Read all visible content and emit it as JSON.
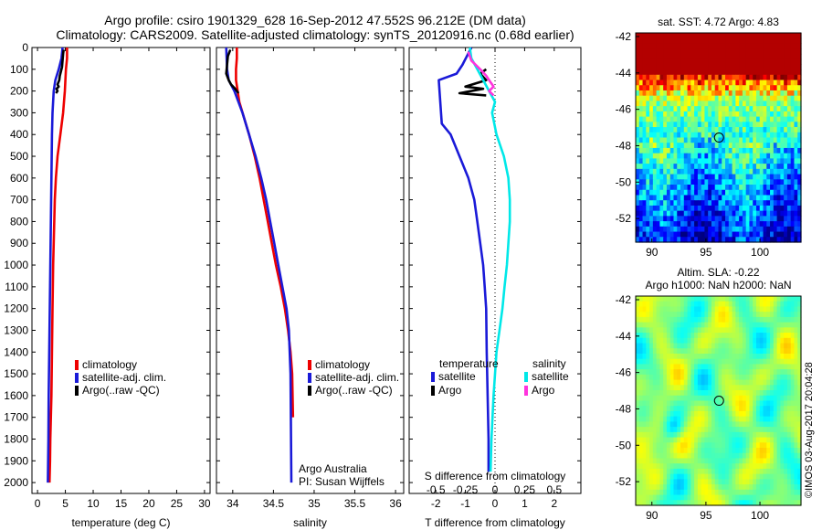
{
  "header": {
    "title_line1": "Argo profile: csiro 1901329_628 16-Sep-2012 47.552S 96.212E (DM data)",
    "title_line2": "Climatology: CARS2009. Satellite-adjusted climatology: synTS_20120916.nc (0.68d earlier)"
  },
  "colors": {
    "climatology": "#ee0000",
    "satellite": "#1a1ad8",
    "argo": "#000000",
    "salinity_satellite": "#00e8e8",
    "salinity_argo": "#ff33dd"
  },
  "chart_data": [
    {
      "type": "line",
      "panel": "temperature",
      "xlabel": "temperature (deg C)",
      "ylabel": "",
      "xlim": [
        -1,
        31
      ],
      "ylim": [
        2050,
        0
      ],
      "y_reversed": true,
      "xticks": [
        0,
        5,
        10,
        15,
        20,
        25,
        30
      ],
      "yticks": [
        0,
        100,
        200,
        300,
        400,
        500,
        600,
        700,
        800,
        900,
        1000,
        1100,
        1200,
        1300,
        1400,
        1500,
        1600,
        1700,
        1800,
        1900,
        2000
      ],
      "legend": [
        "climatology",
        "satellite-adj. clim.",
        "Argo(..raw -QC)"
      ],
      "series": [
        {
          "name": "climatology",
          "color": "#ee0000",
          "x": [
            5.3,
            5.3,
            5.1,
            4.9,
            4.6,
            4.1,
            3.6,
            3.3,
            3.1,
            3.0,
            2.9,
            2.8,
            2.7,
            2.6,
            2.5,
            2.4,
            2.3,
            2.25,
            2.2,
            2.15
          ],
          "y": [
            0,
            50,
            100,
            200,
            300,
            400,
            500,
            600,
            700,
            800,
            900,
            1000,
            1200,
            1400,
            1600,
            1700,
            1800,
            1900,
            1950,
            2000
          ]
        },
        {
          "name": "satellite-adj. clim.",
          "color": "#1a1ad8",
          "x": [
            4.5,
            4.3,
            3.8,
            3.2,
            2.9,
            2.7,
            2.6,
            2.5,
            2.4,
            2.3,
            2.2,
            2.1,
            2.0,
            1.95,
            1.9,
            1.85
          ],
          "y": [
            0,
            50,
            100,
            150,
            200,
            300,
            400,
            600,
            800,
            1000,
            1200,
            1400,
            1600,
            1800,
            1900,
            2000
          ]
        },
        {
          "name": "Argo(..raw -QC)",
          "color": "#000000",
          "x": [
            4.7,
            4.6,
            4.5,
            4.4,
            4.2,
            4.0,
            3.9,
            3.6,
            3.8,
            3.4,
            3.6,
            3.3
          ],
          "y": [
            10,
            30,
            60,
            90,
            110,
            130,
            150,
            170,
            180,
            190,
            200,
            210
          ]
        }
      ]
    },
    {
      "type": "line",
      "panel": "salinity",
      "xlabel": "salinity",
      "ylabel": "",
      "xlim": [
        33.8,
        36.1
      ],
      "ylim": [
        2050,
        0
      ],
      "y_reversed": true,
      "xticks": [
        34,
        34.5,
        35,
        35.5,
        36
      ],
      "legend": [
        "climatology",
        "satellite-adj. clim.",
        "Argo(..raw -QC)"
      ],
      "annotations": [
        "Argo Australia",
        "PI: Susan Wijffels"
      ],
      "series": [
        {
          "name": "climatology",
          "color": "#ee0000",
          "x": [
            34.05,
            34.05,
            34.04,
            34.04,
            34.08,
            34.2,
            34.27,
            34.33,
            34.38,
            34.43,
            34.48,
            34.53,
            34.59,
            34.64,
            34.68,
            34.71,
            34.73,
            34.74
          ],
          "y": [
            0,
            50,
            100,
            150,
            250,
            400,
            500,
            600,
            700,
            800,
            900,
            1000,
            1100,
            1200,
            1300,
            1400,
            1500,
            1700
          ]
        },
        {
          "name": "satellite-adj. clim.",
          "color": "#1a1ad8",
          "x": [
            33.92,
            33.93,
            33.95,
            34.02,
            34.12,
            34.2,
            34.28,
            34.35,
            34.41,
            34.46,
            34.51,
            34.56,
            34.61,
            34.66,
            34.69,
            34.71,
            34.72
          ],
          "y": [
            0,
            100,
            150,
            200,
            300,
            400,
            500,
            600,
            700,
            800,
            900,
            1000,
            1100,
            1200,
            1300,
            1500,
            2000
          ]
        },
        {
          "name": "Argo(..raw -QC)",
          "color": "#000000",
          "x": [
            33.97,
            33.94,
            33.93,
            33.92,
            33.95,
            33.98,
            34.03,
            34.05,
            34.07
          ],
          "y": [
            10,
            40,
            80,
            120,
            150,
            170,
            190,
            200,
            210
          ]
        }
      ]
    },
    {
      "type": "line",
      "panel": "difference",
      "xlabel": "T difference from climatology",
      "xlabel_top": "S difference from climatology",
      "xlim": [
        -2.9,
        2.9
      ],
      "ylim": [
        2050,
        0
      ],
      "y_reversed": true,
      "xticks_T": [
        -2,
        -1,
        0,
        1,
        2
      ],
      "xticks_S": [
        "-0.5",
        "-0.25",
        "0",
        "0.25",
        "0.5"
      ],
      "legend_headers": [
        "temperature",
        "salinity"
      ],
      "legend": [
        "satellite",
        "Argo",
        "satellite",
        "Argo"
      ],
      "series": [
        {
          "name": "temperature satellite",
          "color": "#1a1ad8",
          "x": [
            -0.8,
            -1.1,
            -1.3,
            -1.9,
            -1.8,
            -1.5,
            -1.2,
            -0.9,
            -0.7,
            -0.6,
            -0.5,
            -0.4,
            -0.35,
            -0.3,
            -0.28,
            -0.25,
            -0.22,
            -0.22
          ],
          "y": [
            0,
            80,
            120,
            150,
            350,
            400,
            500,
            600,
            700,
            800,
            900,
            1000,
            1100,
            1200,
            1400,
            1600,
            1800,
            1950
          ]
        },
        {
          "name": "temperature Argo",
          "color": "#000000",
          "x": [
            -0.3,
            -0.5,
            -0.3,
            -1.0,
            -0.4,
            -1.2,
            -0.3
          ],
          "y": [
            100,
            120,
            150,
            180,
            190,
            210,
            220
          ]
        },
        {
          "name": "salinity satellite",
          "color": "#00e8e8",
          "x": [
            -0.85,
            -0.8,
            -0.6,
            -0.2,
            0.0,
            -0.1,
            0.05,
            0.3,
            0.45,
            0.5,
            0.5,
            0.45,
            0.4,
            0.32,
            0.25,
            0.15,
            0.05,
            -0.05,
            -0.12,
            -0.15
          ],
          "y": [
            0,
            50,
            100,
            200,
            250,
            300,
            400,
            500,
            600,
            700,
            800,
            900,
            1000,
            1100,
            1200,
            1300,
            1400,
            1600,
            1800,
            1950
          ]
        },
        {
          "name": "salinity Argo",
          "color": "#ff33dd",
          "x": [
            -0.9,
            -0.8,
            -0.5,
            -0.3,
            -0.2,
            -0.05,
            -0.2,
            -0.05
          ],
          "y": [
            20,
            60,
            100,
            130,
            150,
            180,
            200,
            220
          ]
        }
      ]
    },
    {
      "type": "heatmap",
      "panel": "sat_sst_map",
      "title": "sat. SST: 4.72 Argo: 4.83",
      "xlim": [
        88.5,
        103.8
      ],
      "ylim": [
        -53.3,
        -41.8
      ],
      "xticks": [
        90,
        95,
        100
      ],
      "yticks": [
        -42,
        -44,
        -46,
        -48,
        -50,
        -52
      ],
      "argo_position": {
        "lon": 96.212,
        "lat": -47.552
      }
    },
    {
      "type": "heatmap",
      "panel": "altim_sla_map",
      "title_line1": "Altim. SLA: -0.22",
      "title_line2": "Argo h1000: NaN h2000: NaN",
      "xlim": [
        88.5,
        103.8
      ],
      "ylim": [
        -53.3,
        -41.8
      ],
      "xticks": [
        90,
        95,
        100
      ],
      "yticks": [
        -42,
        -44,
        -46,
        -48,
        -50,
        -52
      ],
      "argo_position": {
        "lon": 96.212,
        "lat": -47.552
      }
    }
  ],
  "credit": "©IMOS 03-Aug-2017 20:04:28"
}
